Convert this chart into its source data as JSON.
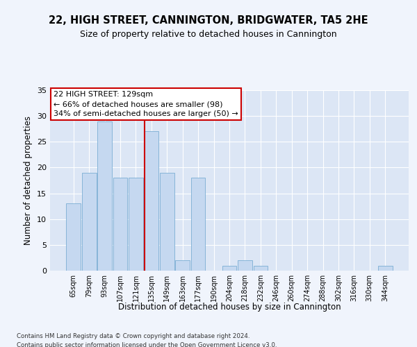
{
  "title": "22, HIGH STREET, CANNINGTON, BRIDGWATER, TA5 2HE",
  "subtitle": "Size of property relative to detached houses in Cannington",
  "xlabel": "Distribution of detached houses by size in Cannington",
  "ylabel": "Number of detached properties",
  "bar_labels": [
    "65sqm",
    "79sqm",
    "93sqm",
    "107sqm",
    "121sqm",
    "135sqm",
    "149sqm",
    "163sqm",
    "177sqm",
    "190sqm",
    "204sqm",
    "218sqm",
    "232sqm",
    "246sqm",
    "260sqm",
    "274sqm",
    "288sqm",
    "302sqm",
    "316sqm",
    "330sqm",
    "344sqm"
  ],
  "bar_values": [
    13,
    19,
    29,
    18,
    18,
    27,
    19,
    2,
    18,
    0,
    1,
    2,
    1,
    0,
    0,
    0,
    0,
    0,
    0,
    0,
    1
  ],
  "bar_color": "#c5d8f0",
  "bar_edgecolor": "#7aadd4",
  "vline_color": "#cc0000",
  "annotation_text": "22 HIGH STREET: 129sqm\n← 66% of detached houses are smaller (98)\n34% of semi-detached houses are larger (50) →",
  "annotation_box_color": "#ffffff",
  "annotation_box_edgecolor": "#cc0000",
  "ylim": [
    0,
    35
  ],
  "yticks": [
    0,
    5,
    10,
    15,
    20,
    25,
    30,
    35
  ],
  "bg_color": "#dce6f5",
  "fig_color": "#f0f4fc",
  "grid_color": "#ffffff",
  "footer_text": "Contains HM Land Registry data © Crown copyright and database right 2024.\nContains public sector information licensed under the Open Government Licence v3.0."
}
